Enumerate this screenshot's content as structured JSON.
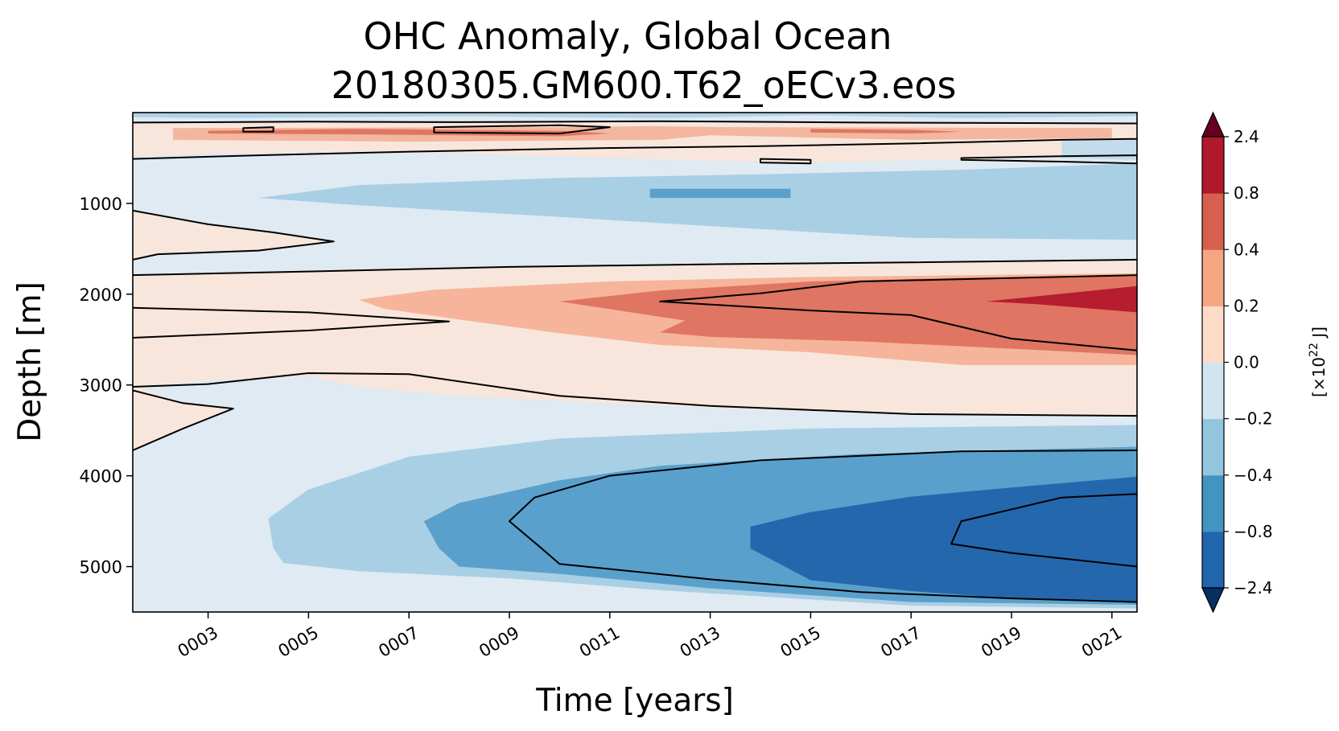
{
  "chart_data": {
    "type": "heatmap",
    "title_line1": "OHC Anomaly, Global Ocean",
    "title_line2": "20180305.GM600.T62_oECv3.eos",
    "xlabel": "Time [years]",
    "ylabel": "Depth [m]",
    "xlim": [
      1.5,
      21.5
    ],
    "ylim": [
      5500,
      0
    ],
    "x_ticks": [
      {
        "value": 3,
        "label": "0003"
      },
      {
        "value": 5,
        "label": "0005"
      },
      {
        "value": 7,
        "label": "0007"
      },
      {
        "value": 9,
        "label": "0009"
      },
      {
        "value": 11,
        "label": "0011"
      },
      {
        "value": 13,
        "label": "0013"
      },
      {
        "value": 15,
        "label": "0015"
      },
      {
        "value": 17,
        "label": "0017"
      },
      {
        "value": 19,
        "label": "0019"
      },
      {
        "value": 21,
        "label": "0021"
      }
    ],
    "y_ticks": [
      {
        "value": 1000,
        "label": "1000"
      },
      {
        "value": 2000,
        "label": "2000"
      },
      {
        "value": 3000,
        "label": "3000"
      },
      {
        "value": 4000,
        "label": "4000"
      },
      {
        "value": 5000,
        "label": "5000"
      }
    ],
    "colorbar": {
      "label_prefix": "[×10",
      "label_exp": "22",
      "label_suffix": " J]",
      "levels": [
        "-2.4",
        "-0.8",
        "-0.4",
        "-0.2",
        "0.0",
        "0.2",
        "0.4",
        "0.8",
        "2.4"
      ],
      "level_labels": [
        "−2.4",
        "−0.8",
        "−0.4",
        "−0.2",
        "0.0",
        "0.2",
        "0.4",
        "0.8",
        "2.4"
      ],
      "colors": [
        "#2166ac",
        "#4393c3",
        "#92c5de",
        "#d1e5f0",
        "#fddbc7",
        "#f4a582",
        "#d6604d",
        "#b2182b"
      ],
      "under_color": "#053061",
      "over_color": "#67001f"
    },
    "background_color": "#dfeaf2",
    "regions": [
      {
        "name": "upper-warm-band",
        "color": "#f8e6dc",
        "points": [
          [
            1.5,
            100
          ],
          [
            21.5,
            120
          ],
          [
            21.5,
            480
          ],
          [
            15,
            550
          ],
          [
            11,
            500
          ],
          [
            7,
            430
          ],
          [
            3,
            450
          ],
          [
            1.5,
            480
          ]
        ]
      },
      {
        "name": "upper-mid-warm",
        "color": "#f2b79e",
        "points": [
          [
            2.3,
            170
          ],
          [
            10,
            160
          ],
          [
            11.8,
            150
          ],
          [
            13.5,
            160
          ],
          [
            21,
            170
          ],
          [
            21,
            280
          ],
          [
            17,
            300
          ],
          [
            13,
            250
          ],
          [
            12,
            300
          ],
          [
            7,
            320
          ],
          [
            2.3,
            300
          ]
        ]
      },
      {
        "name": "upper-strong-warm",
        "color": "#de7663",
        "points": [
          [
            3,
            200
          ],
          [
            6,
            180
          ],
          [
            8,
            190
          ],
          [
            10,
            200
          ],
          [
            11,
            230
          ],
          [
            10,
            260
          ],
          [
            6,
            240
          ],
          [
            3,
            230
          ]
        ]
      },
      {
        "name": "upper-strong-warm-2",
        "color": "#de7663",
        "points": [
          [
            15,
            180
          ],
          [
            17,
            190
          ],
          [
            18,
            210
          ],
          [
            17,
            230
          ],
          [
            15,
            220
          ]
        ]
      },
      {
        "name": "surface-cool-1",
        "color": "#b1d2e5",
        "points": [
          [
            1.5,
            0
          ],
          [
            21.5,
            0
          ],
          [
            21.5,
            40
          ],
          [
            18,
            60
          ],
          [
            15,
            30
          ],
          [
            12,
            60
          ],
          [
            8,
            40
          ],
          [
            3,
            60
          ],
          [
            1.5,
            50
          ]
        ]
      },
      {
        "name": "upper-cool-tongue",
        "color": "#c3dcec",
        "points": [
          [
            20,
            310
          ],
          [
            21.5,
            300
          ],
          [
            21.5,
            520
          ],
          [
            20,
            500
          ]
        ]
      },
      {
        "name": "shallow-cool-band",
        "color": "#a9cfe4",
        "points": [
          [
            21.5,
            560
          ],
          [
            21.5,
            1400
          ],
          [
            17,
            1380
          ],
          [
            13,
            1250
          ],
          [
            10,
            1150
          ],
          [
            6,
            1020
          ],
          [
            4,
            940
          ],
          [
            6,
            800
          ],
          [
            10,
            720
          ],
          [
            14,
            680
          ],
          [
            18,
            630
          ]
        ]
      },
      {
        "name": "shallow-cool-core",
        "color": "#5aa0cc",
        "points": [
          [
            11.8,
            840
          ],
          [
            14.6,
            840
          ],
          [
            14.6,
            940
          ],
          [
            11.8,
            940
          ]
        ]
      },
      {
        "name": "shallow-warm-lobe",
        "color": "#f8e6dc",
        "points": [
          [
            1.5,
            1080
          ],
          [
            3,
            1230
          ],
          [
            4.3,
            1320
          ],
          [
            5.5,
            1420
          ],
          [
            4,
            1520
          ],
          [
            2,
            1560
          ],
          [
            1.5,
            1620
          ]
        ]
      },
      {
        "name": "mid-warm-band",
        "color": "#f8e6dc",
        "points": [
          [
            1.5,
            1780
          ],
          [
            7,
            1710
          ],
          [
            12,
            1670
          ],
          [
            17,
            1650
          ],
          [
            21.5,
            1620
          ],
          [
            21.5,
            3330
          ],
          [
            17,
            3320
          ],
          [
            12,
            3230
          ],
          [
            8,
            3120
          ],
          [
            6,
            3020
          ],
          [
            5,
            2900
          ],
          [
            3,
            2950
          ],
          [
            1.5,
            3040
          ]
        ]
      },
      {
        "name": "mid-warm-0.2",
        "color": "#f6b59a",
        "points": [
          [
            6,
            2060
          ],
          [
            7.5,
            1950
          ],
          [
            11,
            1860
          ],
          [
            15,
            1810
          ],
          [
            21.5,
            1770
          ],
          [
            21.5,
            2780
          ],
          [
            18,
            2780
          ],
          [
            15,
            2640
          ],
          [
            12,
            2560
          ],
          [
            10,
            2430
          ],
          [
            8,
            2280
          ],
          [
            6.5,
            2160
          ]
        ]
      },
      {
        "name": "mid-warm-0.4",
        "color": "#df7562",
        "points": [
          [
            10,
            2080
          ],
          [
            12,
            1960
          ],
          [
            15,
            1860
          ],
          [
            18,
            1820
          ],
          [
            21.5,
            1800
          ],
          [
            21.5,
            2670
          ],
          [
            19,
            2600
          ],
          [
            16,
            2520
          ],
          [
            13,
            2470
          ],
          [
            12,
            2420
          ],
          [
            12.5,
            2290
          ]
        ]
      },
      {
        "name": "mid-warm-core",
        "color": "#b61d2e",
        "points": [
          [
            18.5,
            2080
          ],
          [
            21.5,
            1910
          ],
          [
            21.5,
            2200
          ],
          [
            19.5,
            2110
          ]
        ]
      },
      {
        "name": "deep-warm-lobe",
        "color": "#f8e6dc",
        "points": [
          [
            1.5,
            3000
          ],
          [
            2.5,
            3200
          ],
          [
            3.5,
            3260
          ],
          [
            2.5,
            3480
          ],
          [
            1.5,
            3720
          ]
        ]
      },
      {
        "name": "deep-cool-0.2",
        "color": "#a9cfe4",
        "points": [
          [
            4.2,
            4470
          ],
          [
            5,
            4150
          ],
          [
            7,
            3790
          ],
          [
            10,
            3590
          ],
          [
            15,
            3480
          ],
          [
            21.5,
            3440
          ],
          [
            21.5,
            5460
          ],
          [
            17,
            5430
          ],
          [
            12,
            5260
          ],
          [
            9,
            5130
          ],
          [
            6,
            5050
          ],
          [
            4.5,
            4960
          ],
          [
            4.3,
            4800
          ]
        ]
      },
      {
        "name": "deep-cool-0.4",
        "color": "#5aa0cc",
        "points": [
          [
            7.3,
            4500
          ],
          [
            8,
            4300
          ],
          [
            10,
            4050
          ],
          [
            12,
            3890
          ],
          [
            16,
            3760
          ],
          [
            21.5,
            3680
          ],
          [
            21.5,
            5420
          ],
          [
            17,
            5390
          ],
          [
            13,
            5240
          ],
          [
            10,
            5080
          ],
          [
            8,
            5000
          ],
          [
            7.6,
            4800
          ]
        ]
      },
      {
        "name": "deep-cool-0.8",
        "color": "#2567ad",
        "points": [
          [
            13.8,
            4560
          ],
          [
            15,
            4400
          ],
          [
            17,
            4230
          ],
          [
            19,
            4130
          ],
          [
            21.5,
            4010
          ],
          [
            21.5,
            5400
          ],
          [
            19,
            5350
          ],
          [
            17,
            5270
          ],
          [
            15,
            5150
          ],
          [
            13.8,
            4800
          ]
        ]
      }
    ],
    "contours": [
      {
        "name": "contour-upper-top",
        "closed": false,
        "points": [
          [
            1.5,
            110
          ],
          [
            5,
            100
          ],
          [
            8,
            105
          ],
          [
            12,
            95
          ],
          [
            16,
            110
          ],
          [
            21.5,
            120
          ]
        ]
      },
      {
        "name": "contour-upper-bottom",
        "closed": false,
        "points": [
          [
            1.5,
            510
          ],
          [
            4,
            470
          ],
          [
            7,
            430
          ],
          [
            11,
            390
          ],
          [
            14,
            370
          ],
          [
            17,
            340
          ],
          [
            20,
            300
          ],
          [
            21.5,
            290
          ]
        ]
      },
      {
        "name": "contour-upper-loop-1",
        "closed": true,
        "points": [
          [
            3.7,
            170
          ],
          [
            4.3,
            160
          ],
          [
            4.3,
            210
          ],
          [
            3.7,
            210
          ]
        ]
      },
      {
        "name": "contour-upper-loop-2",
        "closed": true,
        "points": [
          [
            7.5,
            160
          ],
          [
            10,
            140
          ],
          [
            11,
            160
          ],
          [
            10,
            230
          ],
          [
            7.5,
            220
          ]
        ]
      },
      {
        "name": "contour-lens-1",
        "closed": true,
        "points": [
          [
            14,
            510
          ],
          [
            15,
            520
          ],
          [
            15,
            560
          ],
          [
            14,
            550
          ]
        ]
      },
      {
        "name": "contour-lens-2",
        "closed": true,
        "points": [
          [
            18,
            500
          ],
          [
            20,
            480
          ],
          [
            21.5,
            470
          ],
          [
            21.5,
            560
          ],
          [
            20,
            540
          ],
          [
            18,
            520
          ]
        ]
      },
      {
        "name": "contour-shallow-lobe",
        "closed": false,
        "points": [
          [
            1.5,
            1080
          ],
          [
            3,
            1230
          ],
          [
            4.3,
            1320
          ],
          [
            5.5,
            1420
          ],
          [
            4,
            1520
          ],
          [
            2,
            1560
          ],
          [
            1.5,
            1620
          ]
        ]
      },
      {
        "name": "contour-mid-top",
        "closed": false,
        "points": [
          [
            1.5,
            1790
          ],
          [
            5,
            1750
          ],
          [
            9,
            1700
          ],
          [
            13,
            1670
          ],
          [
            17,
            1650
          ],
          [
            21.5,
            1620
          ]
        ]
      },
      {
        "name": "contour-mid-wedge",
        "closed": false,
        "points": [
          [
            1.5,
            2150
          ],
          [
            5,
            2200
          ],
          [
            7.8,
            2300
          ],
          [
            5,
            2400
          ],
          [
            1.5,
            2480
          ]
        ]
      },
      {
        "name": "contour-mid-warm",
        "closed": false,
        "points": [
          [
            21.5,
            2620
          ],
          [
            19,
            2490
          ],
          [
            17,
            2230
          ],
          [
            15,
            2180
          ],
          [
            12,
            2080
          ],
          [
            14,
            1990
          ],
          [
            16,
            1860
          ],
          [
            21.5,
            1790
          ]
        ]
      },
      {
        "name": "contour-mid-bottom",
        "closed": false,
        "points": [
          [
            1.5,
            3020
          ],
          [
            3,
            2990
          ],
          [
            5,
            2870
          ],
          [
            7,
            2880
          ],
          [
            10,
            3120
          ],
          [
            13,
            3230
          ],
          [
            17,
            3320
          ],
          [
            21.5,
            3340
          ]
        ]
      },
      {
        "name": "contour-deep-lobe",
        "closed": false,
        "points": [
          [
            1.5,
            3060
          ],
          [
            2.5,
            3200
          ],
          [
            3.5,
            3260
          ],
          [
            2.5,
            3480
          ],
          [
            1.5,
            3720
          ]
        ]
      },
      {
        "name": "contour-deep-outer",
        "closed": false,
        "points": [
          [
            21.5,
            3720
          ],
          [
            18,
            3730
          ],
          [
            14,
            3830
          ],
          [
            11,
            4000
          ],
          [
            9.5,
            4240
          ],
          [
            9,
            4500
          ],
          [
            9.6,
            4780
          ],
          [
            10,
            4970
          ],
          [
            13,
            5140
          ],
          [
            16,
            5280
          ],
          [
            19,
            5350
          ],
          [
            21.5,
            5390
          ]
        ]
      },
      {
        "name": "contour-deep-inner",
        "closed": false,
        "points": [
          [
            21.5,
            4200
          ],
          [
            20,
            4240
          ],
          [
            18,
            4500
          ],
          [
            17.8,
            4750
          ],
          [
            19,
            4850
          ],
          [
            21.5,
            5000
          ]
        ]
      }
    ]
  }
}
